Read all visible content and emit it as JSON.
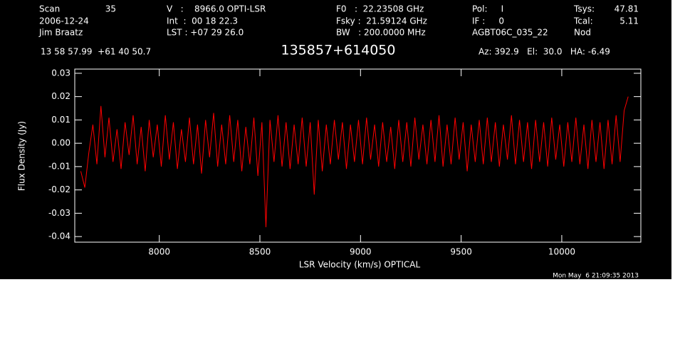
{
  "header": [
    "Scan",
    "35",
    "V   :    8966.0 OPTI-LSR",
    "F0   :  22.23508 GHz",
    "Pol:     I",
    "Tsys:",
    "47.81",
    "2006-12-24",
    "Int  :  00 18 22.3",
    "Fsky :  21.59124 GHz",
    "IF :     0",
    "Tcal:",
    "5.11",
    "Jim Braatz",
    "LST : +07 29 26.0",
    "BW   : 200.0000 MHz",
    "AGBT06C_035_22",
    "Nod",
    "13 58 57.99  +61 40 50.7",
    "Az: 392.9   El:  30.0   HA: -6.49",
    "Mon May  6 21:09:35 2013"
  ],
  "chart_data": {
    "type": "line",
    "title": "135857+614050",
    "x_label": "LSR Velocity (km/s) OPTICAL",
    "y_label": "Flux Density (Jy)",
    "xlim": [
      7580,
      10393
    ],
    "ylim": [
      -0.0424,
      0.0318
    ],
    "xticks": [
      8000,
      8500,
      9000,
      9500,
      10000
    ],
    "yticks": [
      -0.04,
      -0.03,
      -0.02,
      -0.01,
      {
        "value": 0,
        "label": "0.00"
      },
      0.01,
      0.02,
      0.03
    ],
    "x": [
      7610,
      7630,
      7650,
      7670,
      7690,
      7710,
      7730,
      7750,
      7770,
      7790,
      7810,
      7830,
      7850,
      7870,
      7890,
      7910,
      7930,
      7950,
      7970,
      7990,
      8010,
      8030,
      8050,
      8070,
      8090,
      8110,
      8130,
      8150,
      8170,
      8190,
      8210,
      8230,
      8250,
      8270,
      8290,
      8310,
      8330,
      8350,
      8370,
      8390,
      8410,
      8430,
      8450,
      8470,
      8490,
      8510,
      8530,
      8550,
      8570,
      8590,
      8610,
      8630,
      8650,
      8670,
      8690,
      8710,
      8730,
      8750,
      8770,
      8790,
      8810,
      8830,
      8850,
      8870,
      8890,
      8910,
      8930,
      8950,
      8970,
      8990,
      9010,
      9030,
      9050,
      9070,
      9090,
      9110,
      9130,
      9150,
      9170,
      9190,
      9210,
      9230,
      9250,
      9270,
      9290,
      9310,
      9330,
      9350,
      9370,
      9390,
      9410,
      9430,
      9450,
      9470,
      9490,
      9510,
      9530,
      9550,
      9570,
      9590,
      9610,
      9630,
      9650,
      9670,
      9690,
      9710,
      9730,
      9750,
      9770,
      9790,
      9810,
      9830,
      9850,
      9870,
      9890,
      9910,
      9930,
      9950,
      9970,
      9990,
      10010,
      10030,
      10050,
      10070,
      10090,
      10110,
      10130,
      10150,
      10170,
      10190,
      10210,
      10230,
      10250,
      10270,
      10290,
      10310,
      10330
    ],
    "series": [
      {
        "color": "#ff0000",
        "values": [
          -0.012,
          -0.019,
          -0.004,
          0.008,
          -0.009,
          0.016,
          -0.006,
          0.011,
          -0.008,
          0.006,
          -0.011,
          0.009,
          -0.005,
          0.012,
          -0.009,
          0.007,
          -0.012,
          0.01,
          -0.006,
          0.008,
          -0.01,
          0.012,
          -0.007,
          0.009,
          -0.011,
          0.006,
          -0.008,
          0.011,
          -0.009,
          0.008,
          -0.013,
          0.01,
          -0.006,
          0.013,
          -0.01,
          0.008,
          -0.009,
          0.012,
          -0.008,
          0.01,
          -0.012,
          0.007,
          -0.009,
          0.011,
          -0.014,
          0.009,
          -0.036,
          0.01,
          -0.008,
          0.012,
          -0.01,
          0.009,
          -0.011,
          0.008,
          -0.009,
          0.011,
          -0.01,
          0.009,
          -0.022,
          0.01,
          -0.012,
          0.008,
          -0.009,
          0.01,
          -0.007,
          0.009,
          -0.011,
          0.008,
          -0.008,
          0.01,
          -0.009,
          0.011,
          -0.007,
          0.008,
          -0.01,
          0.009,
          -0.008,
          0.007,
          -0.011,
          0.01,
          -0.008,
          0.009,
          -0.01,
          0.011,
          -0.007,
          0.008,
          -0.009,
          0.01,
          -0.008,
          0.012,
          -0.01,
          0.008,
          -0.009,
          0.011,
          -0.007,
          0.009,
          -0.012,
          0.008,
          -0.008,
          0.01,
          -0.009,
          0.011,
          -0.008,
          0.009,
          -0.01,
          0.008,
          -0.007,
          0.012,
          -0.009,
          0.01,
          -0.008,
          0.009,
          -0.011,
          0.01,
          -0.008,
          0.009,
          -0.01,
          0.011,
          -0.007,
          0.008,
          -0.01,
          0.009,
          -0.008,
          0.011,
          -0.009,
          0.008,
          -0.011,
          0.01,
          -0.008,
          0.009,
          -0.011,
          0.01,
          -0.009,
          0.012,
          -0.008,
          0.014,
          0.02
        ]
      }
    ]
  }
}
